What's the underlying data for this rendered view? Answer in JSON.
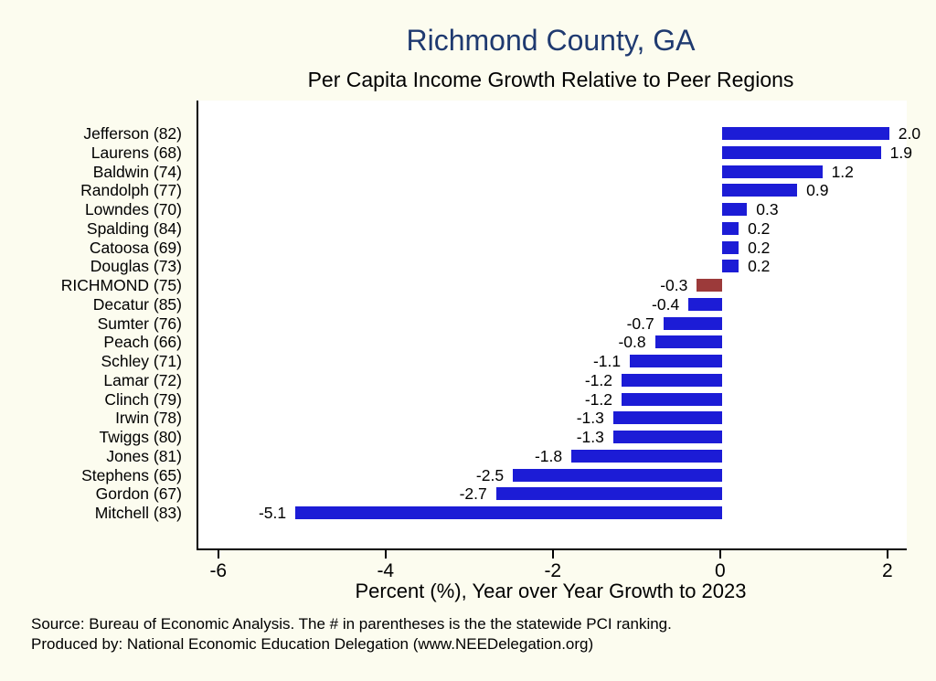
{
  "title": "Richmond County, GA",
  "subtitle": "Per Capita Income Growth Relative to Peer Regions",
  "xlabel": "Percent (%), Year over Year Growth to 2023",
  "notes": {
    "line1": "Source: Bureau of Economic Analysis. The # in parentheses is the the statewide PCI ranking.",
    "line2": "Produced by: National Economic Education Delegation (www.NEEDelegation.org)"
  },
  "colors": {
    "bar": "#1c1cd6",
    "highlight_bar": "#9c3a3a",
    "title": "#1f3a70",
    "background": "#fcfcef",
    "plot_background": "#ffffff",
    "axis": "#000000"
  },
  "chart_data": {
    "type": "bar",
    "orientation": "horizontal",
    "title": "Richmond County, GA",
    "subtitle": "Per Capita Income Growth Relative to Peer Regions",
    "xlabel": "Percent (%), Year over Year Growth to 2023",
    "ylabel": "",
    "grid": false,
    "legend": "none",
    "xlim": [
      -6.26,
      2.21
    ],
    "xticks": [
      -6,
      -4,
      -2,
      0,
      2
    ],
    "highlight_category": "RICHMOND (75)",
    "categories": [
      "Jefferson (82)",
      "Laurens (68)",
      "Baldwin (74)",
      "Randolph (77)",
      "Lowndes (70)",
      "Spalding (84)",
      "Catoosa (69)",
      "Douglas (73)",
      "RICHMOND (75)",
      "Decatur (85)",
      "Sumter (76)",
      "Peach (66)",
      "Schley (71)",
      "Lamar (72)",
      "Clinch (79)",
      "Irwin (78)",
      "Twiggs (80)",
      "Jones (81)",
      "Stephens (65)",
      "Gordon (67)",
      "Mitchell (83)"
    ],
    "values": [
      2.0,
      1.9,
      1.2,
      0.9,
      0.3,
      0.2,
      0.2,
      0.2,
      -0.3,
      -0.4,
      -0.7,
      -0.8,
      -1.1,
      -1.2,
      -1.2,
      -1.3,
      -1.3,
      -1.8,
      -2.5,
      -2.7,
      -5.1
    ]
  }
}
